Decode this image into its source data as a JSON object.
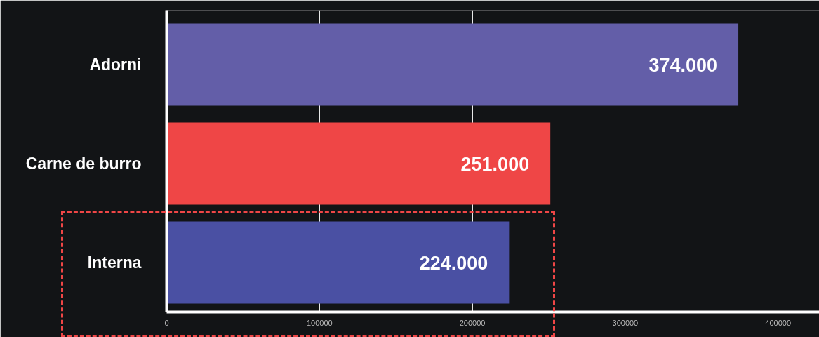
{
  "chart_data": {
    "type": "bar",
    "orientation": "horizontal",
    "categories": [
      "Adorni",
      "Carne de burro",
      "Interna"
    ],
    "values": [
      374000,
      251000,
      224000
    ],
    "colors": [
      "#635ea8",
      "#ef4646",
      "#4a50a3"
    ],
    "value_labels": [
      "374.000",
      "251.000",
      "224.000"
    ],
    "xlim": [
      0,
      427000
    ],
    "xticks": [
      0,
      100000,
      200000,
      300000,
      400000
    ],
    "grid": "x"
  }
}
